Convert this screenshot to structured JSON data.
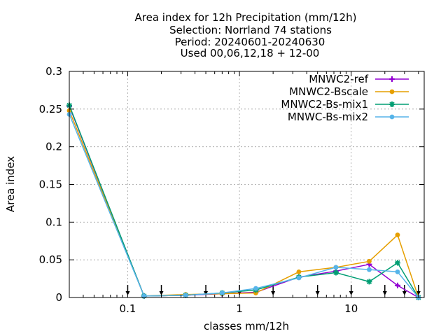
{
  "chart_data": {
    "type": "line",
    "title_lines": [
      "Area index  for 12h Precipitation (mm/12h)",
      "Selection: Norrland     74 stations",
      "Period: 20240601-20240630",
      "Used 00,06,12,18 + 12-00"
    ],
    "xlabel": "classes mm/12h",
    "ylabel": "Area index",
    "x_scale": "log",
    "xlim": [
      0.03,
      45
    ],
    "ylim": [
      0,
      0.3
    ],
    "x_ticks": [
      0.1,
      1,
      10
    ],
    "x_tick_labels": [
      "0.1",
      "1",
      "10"
    ],
    "y_ticks": [
      0,
      0.05,
      0.1,
      0.15,
      0.2,
      0.25,
      0.3
    ],
    "y_tick_labels": [
      "0",
      "0.05",
      "0.1",
      "0.15",
      "0.2",
      "0.25",
      "0.3"
    ],
    "grid": true,
    "legend_position": "top-right",
    "threshold_arrows": [
      0.1,
      0.2,
      0.5,
      1,
      2,
      5,
      10,
      20,
      30,
      40
    ],
    "x": [
      0.03,
      0.14,
      0.33,
      0.7,
      1.4,
      3.4,
      7.3,
      14.5,
      26,
      40
    ],
    "series": [
      {
        "name": "MNWC2-ref",
        "color": "#9400d3",
        "marker": "plus",
        "values": [
          0.254,
          0.002,
          0.003,
          0.005,
          0.007,
          0.027,
          0.035,
          0.044,
          0.016,
          0.0
        ]
      },
      {
        "name": "MNWC2-Bscale",
        "color": "#e69f00",
        "marker": "circle",
        "values": [
          0.248,
          0.002,
          0.004,
          0.005,
          0.006,
          0.034,
          0.04,
          0.048,
          0.083,
          0.0
        ]
      },
      {
        "name": "MNWC2-Bs-mix1",
        "color": "#009e73",
        "marker": "star",
        "values": [
          0.255,
          0.002,
          0.003,
          0.006,
          0.01,
          0.027,
          0.033,
          0.021,
          0.046,
          0.0
        ]
      },
      {
        "name": "MNWC-Bs-mix2",
        "color": "#56b4e9",
        "marker": "circle",
        "values": [
          0.243,
          0.002,
          0.003,
          0.006,
          0.012,
          0.026,
          0.04,
          0.037,
          0.034,
          0.0
        ]
      }
    ]
  }
}
